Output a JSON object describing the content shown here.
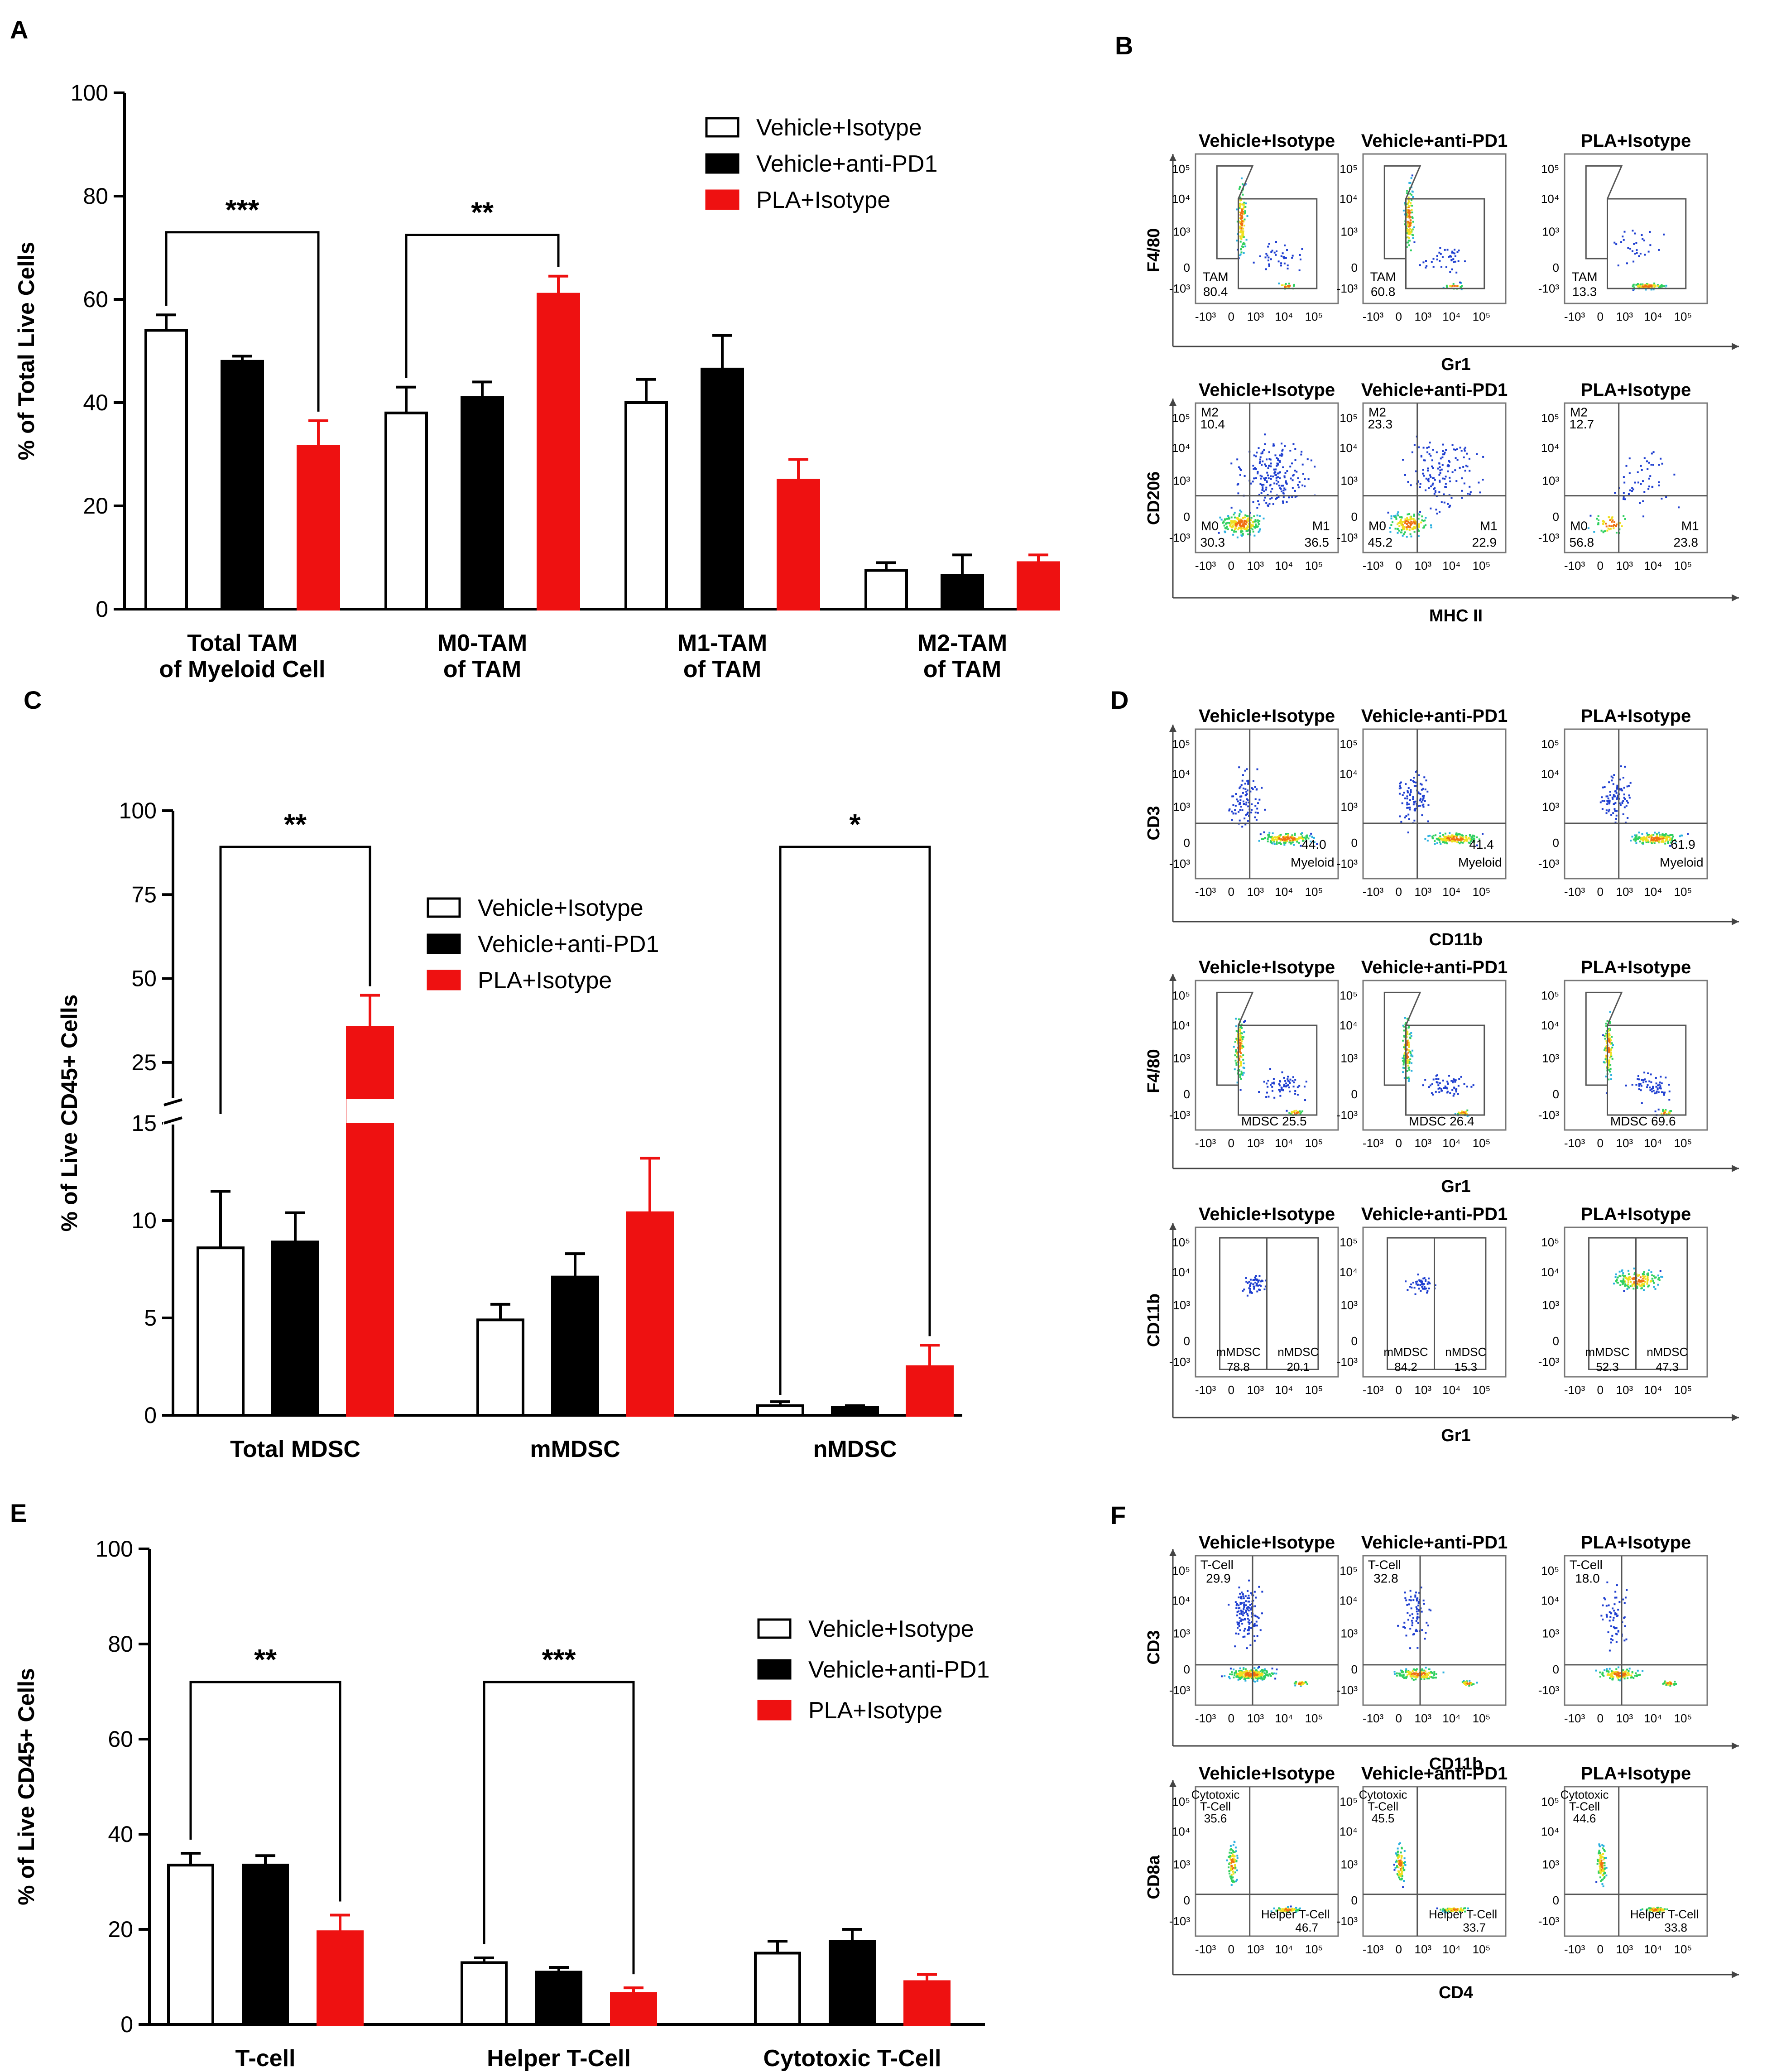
{
  "panels": {
    "A": "A",
    "B": "B",
    "C": "C",
    "D": "D",
    "E": "E",
    "F": "F"
  },
  "chart_data": [
    {
      "id": "A",
      "type": "bar",
      "ylabel": "% of Total Live Cells",
      "ylim": [
        0,
        100
      ],
      "yticks": [
        0,
        20,
        40,
        60,
        80,
        100
      ],
      "categories": [
        "Total TAM\nof Myeloid Cell",
        "M0-TAM\nof TAM",
        "M1-TAM\nof TAM",
        "M2-TAM\nof TAM"
      ],
      "series": [
        {
          "name": "Vehicle+Isotype",
          "color": "#ffffff",
          "values": [
            54,
            38,
            40,
            7.5
          ],
          "errors": [
            3,
            5,
            4.5,
            1.5
          ]
        },
        {
          "name": "Vehicle+anti-PD1",
          "color": "#000000",
          "values": [
            48,
            41,
            46.5,
            6.5
          ],
          "errors": [
            1,
            3,
            6.5,
            4
          ]
        },
        {
          "name": "PLA+Isotype",
          "color": "#ee1111",
          "values": [
            31.5,
            61,
            25,
            9
          ],
          "errors": [
            5,
            3.5,
            4,
            1.5
          ]
        }
      ],
      "significance": [
        {
          "from": [
            0,
            0
          ],
          "to": [
            0,
            2
          ],
          "label": "***",
          "y": 73
        },
        {
          "from": [
            1,
            0
          ],
          "to": [
            1,
            2
          ],
          "label": "**",
          "y": 72.5
        }
      ],
      "legend": "top-right"
    },
    {
      "id": "C",
      "type": "bar",
      "ylabel": "% of Live CD45+ Cells",
      "broken_axis": {
        "lower": [
          0,
          15
        ],
        "upper": [
          15,
          100
        ]
      },
      "yticks_lower": [
        0,
        5,
        10,
        15
      ],
      "yticks_upper": [
        25,
        50,
        75,
        100
      ],
      "categories": [
        "Total MDSC",
        "mMDSC",
        "nMDSC"
      ],
      "series": [
        {
          "name": "Vehicle+Isotype",
          "color": "#ffffff",
          "values": [
            8.6,
            4.9,
            0.5
          ],
          "errors": [
            2.9,
            0.8,
            0.2
          ]
        },
        {
          "name": "Vehicle+anti-PD1",
          "color": "#000000",
          "values": [
            8.9,
            7.1,
            0.4
          ],
          "errors": [
            1.5,
            1.2,
            0.1
          ]
        },
        {
          "name": "PLA+Isotype",
          "color": "#ee1111",
          "values": [
            35.5,
            10.4,
            2.5
          ],
          "errors": [
            9.5,
            2.8,
            1.1
          ]
        }
      ],
      "significance": [
        {
          "from": [
            0,
            0
          ],
          "to": [
            0,
            2
          ],
          "label": "**"
        },
        {
          "from": [
            2,
            0
          ],
          "to": [
            2,
            2
          ],
          "label": "*"
        }
      ],
      "legend": "top-center"
    },
    {
      "id": "E",
      "type": "bar",
      "ylabel": "% of Live CD45+ Cells",
      "ylim": [
        0,
        100
      ],
      "yticks": [
        0,
        20,
        40,
        60,
        80,
        100
      ],
      "categories": [
        "T-cell",
        "Helper T-Cell",
        "Cytotoxic T-Cell"
      ],
      "series": [
        {
          "name": "Vehicle+Isotype",
          "color": "#ffffff",
          "values": [
            33.5,
            13,
            15
          ],
          "errors": [
            2.5,
            1,
            2.5
          ]
        },
        {
          "name": "Vehicle+anti-PD1",
          "color": "#000000",
          "values": [
            33.5,
            11,
            17.5
          ],
          "errors": [
            2,
            1,
            2.5
          ]
        },
        {
          "name": "PLA+Isotype",
          "color": "#ee1111",
          "values": [
            19.5,
            6.5,
            9
          ],
          "errors": [
            3.5,
            1.2,
            1.5
          ]
        }
      ],
      "significance": [
        {
          "from": [
            0,
            0
          ],
          "to": [
            0,
            2
          ],
          "label": "**",
          "y": 72
        },
        {
          "from": [
            1,
            0
          ],
          "to": [
            1,
            2
          ],
          "label": "***",
          "y": 72
        }
      ],
      "legend": "top-right"
    }
  ],
  "flow": {
    "panels": [
      {
        "id": "B",
        "rows": [
          {
            "x_axis": "Gr1",
            "y_axis": "F4/80",
            "plots": [
              {
                "title": "Vehicle+Isotype",
                "gate": "TAM",
                "values": [
                  "80.4"
                ]
              },
              {
                "title": "Vehicle+anti-PD1",
                "gate": "TAM",
                "values": [
                  "60.8"
                ]
              },
              {
                "title": "PLA+Isotype",
                "gate": "TAM",
                "values": [
                  "13.3"
                ]
              }
            ]
          },
          {
            "x_axis": "MHC II",
            "y_axis": "CD206",
            "plots": [
              {
                "title": "Vehicle+Isotype",
                "q": {
                  "M2": "10.4",
                  "M0": "30.3",
                  "M1": "36.5"
                }
              },
              {
                "title": "Vehicle+anti-PD1",
                "q": {
                  "M2": "23.3",
                  "M0": "45.2",
                  "M1": "22.9"
                }
              },
              {
                "title": "PLA+Isotype",
                "q": {
                  "M2": "12.7",
                  "M0": "56.8",
                  "M1": "23.8"
                }
              }
            ]
          }
        ]
      },
      {
        "id": "D",
        "rows": [
          {
            "x_axis": "CD11b",
            "y_axis": "CD3",
            "plots": [
              {
                "title": "Vehicle+Isotype",
                "value": "44.0",
                "gate": "Myeloid"
              },
              {
                "title": "Vehicle+anti-PD1",
                "value": "41.4",
                "gate": "Myeloid"
              },
              {
                "title": "PLA+Isotype",
                "value": "61.9",
                "gate": "Myeloid"
              }
            ]
          },
          {
            "x_axis": "Gr1",
            "y_axis": "F4/80",
            "plots": [
              {
                "title": "Vehicle+Isotype",
                "gate": "MDSC 25.5"
              },
              {
                "title": "Vehicle+anti-PD1",
                "gate": "MDSC 26.4"
              },
              {
                "title": "PLA+Isotype",
                "gate": "MDSC 69.6"
              }
            ]
          },
          {
            "x_axis": "Gr1",
            "y_axis": "CD11b",
            "plots": [
              {
                "title": "Vehicle+Isotype",
                "left": "mMDSC",
                "left_val": "78.8",
                "right": "nMDSC",
                "right_val": "20.1"
              },
              {
                "title": "Vehicle+anti-PD1",
                "left": "mMDSC",
                "left_val": "84.2",
                "right": "nMDSC",
                "right_val": "15.3"
              },
              {
                "title": "PLA+Isotype",
                "left": "mMDSC",
                "left_val": "52.3",
                "right": "nMDSC",
                "right_val": "47.3"
              }
            ]
          }
        ]
      },
      {
        "id": "F",
        "rows": [
          {
            "x_axis": "CD11b",
            "y_axis": "CD3",
            "plots": [
              {
                "title": "Vehicle+Isotype",
                "gate": "T-Cell",
                "value": "29.9"
              },
              {
                "title": "Vehicle+anti-PD1",
                "gate": "T-Cell",
                "value": "32.8"
              },
              {
                "title": "PLA+Isotype",
                "gate": "T-Cell",
                "value": "18.0"
              }
            ]
          },
          {
            "x_axis": "CD4",
            "y_axis": "CD8a",
            "plots": [
              {
                "title": "Vehicle+Isotype",
                "top": "Cytotoxic\nT-Cell",
                "top_val": "35.6",
                "bottom": "Helper  T-Cell",
                "bottom_val": "46.7"
              },
              {
                "title": "Vehicle+anti-PD1",
                "top": "Cytotoxic\nT-Cell",
                "top_val": "45.5",
                "bottom": "Helper  T-Cell",
                "bottom_val": "33.7"
              },
              {
                "title": "PLA+Isotype",
                "top": "Cytotoxic\nT-Cell",
                "top_val": "44.6",
                "bottom": "Helper  T-Cell",
                "bottom_val": "33.8"
              }
            ]
          }
        ]
      }
    ],
    "tick_labels_x": [
      "-10³",
      "0",
      "10³",
      "10⁴",
      "10⁵"
    ],
    "tick_labels_y": [
      "10⁵",
      "10⁴",
      "10³",
      "0",
      "-10³"
    ],
    "density_colors": [
      "#1f3fd0",
      "#2ab0e0",
      "#30d060",
      "#f0e020",
      "#f07010"
    ]
  }
}
